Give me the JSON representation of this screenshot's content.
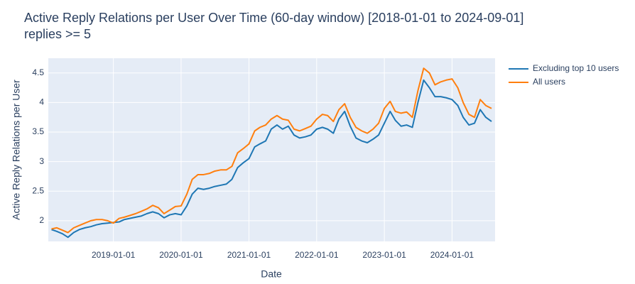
{
  "chart_data": {
    "type": "line",
    "title": "Active Reply Relations per User Over Time (60-day window) [2018-01-01 to 2024-09-01]",
    "subtitle": "replies >= 5",
    "x_label": "Date",
    "y_label": "Active Reply Relations per User",
    "x": [
      "2018-02-01",
      "2018-03-01",
      "2018-04-01",
      "2018-05-01",
      "2018-06-01",
      "2018-07-01",
      "2018-08-01",
      "2018-09-01",
      "2018-10-01",
      "2018-11-01",
      "2018-12-01",
      "2019-01-01",
      "2019-02-01",
      "2019-03-01",
      "2019-04-01",
      "2019-05-01",
      "2019-06-01",
      "2019-07-01",
      "2019-08-01",
      "2019-09-01",
      "2019-10-01",
      "2019-11-01",
      "2019-12-01",
      "2020-01-01",
      "2020-02-01",
      "2020-03-01",
      "2020-04-01",
      "2020-05-01",
      "2020-06-01",
      "2020-07-01",
      "2020-08-01",
      "2020-09-01",
      "2020-10-01",
      "2020-11-01",
      "2020-12-01",
      "2021-01-01",
      "2021-02-01",
      "2021-03-01",
      "2021-04-01",
      "2021-05-01",
      "2021-06-01",
      "2021-07-01",
      "2021-08-01",
      "2021-09-01",
      "2021-10-01",
      "2021-11-01",
      "2021-12-01",
      "2022-01-01",
      "2022-02-01",
      "2022-03-01",
      "2022-04-01",
      "2022-05-01",
      "2022-06-01",
      "2022-07-01",
      "2022-08-01",
      "2022-09-01",
      "2022-10-01",
      "2022-11-01",
      "2022-12-01",
      "2023-01-01",
      "2023-02-01",
      "2023-03-01",
      "2023-04-01",
      "2023-05-01",
      "2023-06-01",
      "2023-07-01",
      "2023-08-01",
      "2023-09-01",
      "2023-10-01",
      "2023-11-01",
      "2023-12-01",
      "2024-01-01",
      "2024-02-01",
      "2024-03-01",
      "2024-04-01",
      "2024-05-01",
      "2024-06-01",
      "2024-07-01",
      "2024-08-01"
    ],
    "series": [
      {
        "name": "Excluding top 10 users",
        "color": "#1f77b4",
        "values": [
          1.85,
          1.82,
          1.78,
          1.72,
          1.8,
          1.85,
          1.88,
          1.9,
          1.93,
          1.95,
          1.96,
          1.97,
          1.98,
          2.02,
          2.04,
          2.06,
          2.08,
          2.12,
          2.15,
          2.12,
          2.05,
          2.1,
          2.12,
          2.1,
          2.25,
          2.45,
          2.55,
          2.53,
          2.55,
          2.58,
          2.6,
          2.62,
          2.7,
          2.9,
          2.98,
          3.05,
          3.25,
          3.3,
          3.35,
          3.55,
          3.62,
          3.55,
          3.6,
          3.45,
          3.4,
          3.42,
          3.45,
          3.55,
          3.58,
          3.55,
          3.48,
          3.72,
          3.85,
          3.6,
          3.4,
          3.35,
          3.32,
          3.38,
          3.45,
          3.65,
          3.85,
          3.7,
          3.6,
          3.62,
          3.58,
          4.0,
          4.38,
          4.25,
          4.1,
          4.1,
          4.08,
          4.05,
          3.95,
          3.75,
          3.62,
          3.65,
          3.88,
          3.75,
          3.68
        ]
      },
      {
        "name": "All users",
        "color": "#ff7f0e",
        "values": [
          1.86,
          1.88,
          1.84,
          1.8,
          1.88,
          1.92,
          1.96,
          2.0,
          2.02,
          2.02,
          2.0,
          1.96,
          2.04,
          2.06,
          2.09,
          2.12,
          2.16,
          2.2,
          2.26,
          2.22,
          2.12,
          2.18,
          2.24,
          2.25,
          2.45,
          2.7,
          2.78,
          2.78,
          2.8,
          2.84,
          2.86,
          2.86,
          2.92,
          3.15,
          3.22,
          3.3,
          3.52,
          3.58,
          3.62,
          3.72,
          3.78,
          3.72,
          3.7,
          3.55,
          3.52,
          3.56,
          3.6,
          3.72,
          3.8,
          3.78,
          3.68,
          3.88,
          3.98,
          3.75,
          3.58,
          3.52,
          3.48,
          3.55,
          3.65,
          3.9,
          4.02,
          3.85,
          3.82,
          3.84,
          3.75,
          4.2,
          4.58,
          4.5,
          4.3,
          4.35,
          4.38,
          4.4,
          4.25,
          4.0,
          3.8,
          3.75,
          4.05,
          3.95,
          3.9
        ]
      }
    ],
    "xlim": [
      "2018-01-15",
      "2024-08-20"
    ],
    "xticks": [
      "2019-01-01",
      "2020-01-01",
      "2021-01-01",
      "2022-01-01",
      "2023-01-01",
      "2024-01-01"
    ],
    "ylim": [
      1.65,
      4.75
    ],
    "yticks": [
      2,
      2.5,
      3,
      3.5,
      4,
      4.5
    ],
    "grid": true,
    "legend": "outside-right"
  }
}
